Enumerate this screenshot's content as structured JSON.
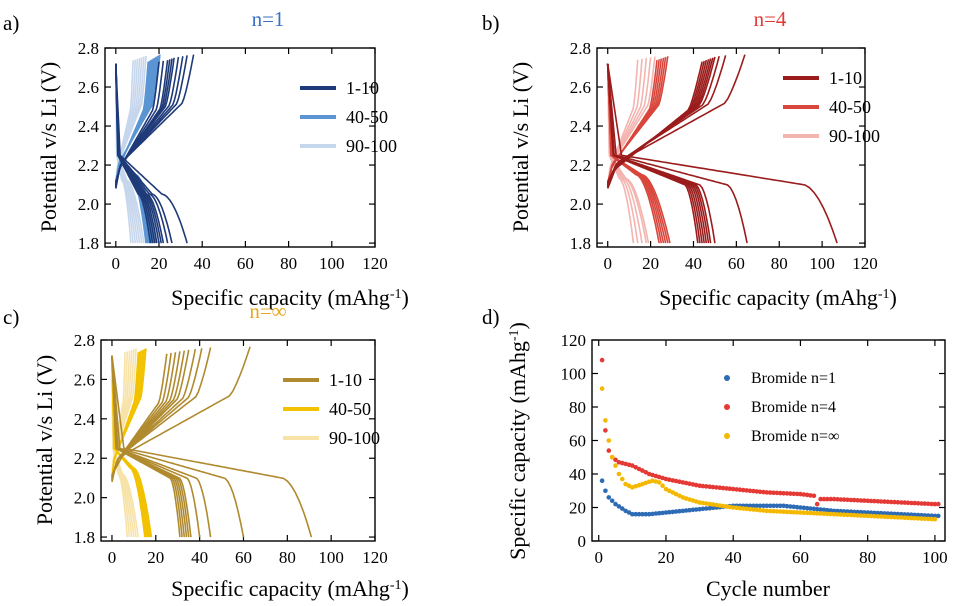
{
  "chart_data": [
    {
      "panel": "a)",
      "title": "n=1",
      "title_color": "#3a6fc2",
      "type": "line",
      "xlabel": "Specific capacity (mAhg",
      "xlabel_sup": "-1",
      "xlabel_end": ")",
      "ylabel": "Potential v/s Li (V)",
      "xlim": [
        -5,
        120
      ],
      "ylim": [
        1.78,
        2.8
      ],
      "xticks": [
        0,
        20,
        40,
        60,
        80,
        100,
        120
      ],
      "yticks": [
        1.8,
        2.0,
        2.2,
        2.4,
        2.6,
        2.8
      ],
      "ytick_labels": [
        "1.8",
        "2.0",
        "2.2",
        "2.4",
        "2.6",
        "2.8"
      ],
      "legend_position": "top-right",
      "legend": [
        {
          "label": "1-10",
          "color": "#1f3a78"
        },
        {
          "label": "40-50",
          "color": "#5b95d3"
        },
        {
          "label": "90-100",
          "color": "#c6d6ec"
        }
      ],
      "groups": [
        {
          "legend_index": 0,
          "charge_end": [
            20,
            22,
            24,
            25,
            26,
            27,
            29,
            31,
            33,
            36
          ],
          "discharge_end": [
            16,
            17,
            18,
            19,
            20,
            21,
            22,
            24,
            26,
            33
          ],
          "plateau": 2.05,
          "knee": 0.65
        },
        {
          "legend_index": 1,
          "charge_end": [
            15,
            15.6,
            16.2,
            16.8,
            17.4,
            18,
            18.6,
            19.2,
            19.8,
            20.4
          ],
          "discharge_end": [
            14,
            14.5,
            15,
            15.5,
            16,
            16.5,
            17,
            17.5,
            18,
            18.5
          ],
          "plateau": 2.15,
          "knee": 0.5
        },
        {
          "legend_index": 2,
          "charge_end": [
            8,
            9,
            10,
            11,
            12,
            13,
            14
          ],
          "discharge_end": [
            7,
            8,
            9,
            10,
            11,
            12,
            13
          ],
          "plateau": 2.12,
          "knee": 0.4
        }
      ]
    },
    {
      "panel": "b)",
      "title": "n=4",
      "title_color": "#e53935",
      "type": "line",
      "xlabel": "Specific capacity (mAhg",
      "xlabel_sup": "-1",
      "xlabel_end": ")",
      "ylabel": "Potential v/s Li (V)",
      "xlim": [
        -5,
        120
      ],
      "ylim": [
        1.78,
        2.8
      ],
      "xticks": [
        0,
        20,
        40,
        60,
        80,
        100,
        120
      ],
      "yticks": [
        1.8,
        2.0,
        2.2,
        2.4,
        2.6,
        2.8
      ],
      "ytick_labels": [
        "1.8",
        "2.0",
        "2.2",
        "2.4",
        "2.6",
        "2.8"
      ],
      "legend_position": "top-right",
      "legend": [
        {
          "label": "1-10",
          "color": "#9b1c1c"
        },
        {
          "label": "40-50",
          "color": "#d8463c"
        },
        {
          "label": "90-100",
          "color": "#f4b4b0"
        }
      ],
      "groups": [
        {
          "legend_index": 0,
          "charge_end": [
            44,
            45,
            46,
            47,
            48,
            49,
            50,
            52,
            55,
            64
          ],
          "discharge_end": [
            42,
            43,
            44,
            45,
            46,
            47,
            48,
            50,
            65,
            107
          ],
          "plateau": 2.1,
          "knee": 0.85
        },
        {
          "legend_index": 1,
          "charge_end": [
            23,
            24,
            25,
            26,
            27,
            28
          ],
          "discharge_end": [
            24,
            25,
            26,
            27,
            28,
            29
          ],
          "plateau": 2.15,
          "knee": 0.55
        },
        {
          "legend_index": 2,
          "charge_end": [
            14,
            16,
            18,
            20,
            22
          ],
          "discharge_end": [
            12,
            14,
            16,
            18,
            19
          ],
          "plateau": 2.13,
          "knee": 0.45
        }
      ]
    },
    {
      "panel": "c)",
      "title": "n=∞",
      "title_color": "#e8a921",
      "type": "line",
      "xlabel": "Specific capacity (mAhg",
      "xlabel_sup": "-1",
      "xlabel_end": ")",
      "ylabel": "Potential v/s Li (V)",
      "xlim": [
        -5,
        120
      ],
      "ylim": [
        1.78,
        2.8
      ],
      "xticks": [
        0,
        20,
        40,
        60,
        80,
        100,
        120
      ],
      "yticks": [
        1.8,
        2.0,
        2.2,
        2.4,
        2.6,
        2.8
      ],
      "ytick_labels": [
        "1.8",
        "2.0",
        "2.2",
        "2.4",
        "2.6",
        "2.8"
      ],
      "legend_position": "top-right",
      "legend": [
        {
          "label": "1-10",
          "color": "#b08a2e"
        },
        {
          "label": "40-50",
          "color": "#f2c200"
        },
        {
          "label": "90-100",
          "color": "#f7e3a8"
        }
      ],
      "groups": [
        {
          "legend_index": 0,
          "charge_end": [
            25,
            27,
            29,
            31,
            33,
            35,
            38,
            41,
            45,
            63
          ],
          "discharge_end": [
            31,
            32,
            33,
            34,
            35,
            36,
            40,
            45,
            60,
            91
          ],
          "plateau": 2.1,
          "knee": 0.85
        },
        {
          "legend_index": 1,
          "charge_end": [
            12,
            12.7,
            13.4,
            14.1,
            14.8,
            15.5
          ],
          "discharge_end": [
            15,
            15.6,
            16.2,
            16.8,
            17.4,
            18
          ],
          "plateau": 2.15,
          "knee": 0.55
        },
        {
          "legend_index": 2,
          "charge_end": [
            6,
            7,
            8,
            9,
            10,
            11
          ],
          "discharge_end": [
            7,
            8,
            9,
            10,
            11,
            12
          ],
          "plateau": 2.12,
          "knee": 0.4
        }
      ]
    },
    {
      "panel": "d)",
      "type": "scatter",
      "xlabel": "Cycle number",
      "ylabel": "Specific capacity (mAhg",
      "ylabel_sup": "-1",
      "ylabel_end": ")",
      "xlim": [
        -2,
        103
      ],
      "ylim": [
        0,
        120
      ],
      "xticks": [
        0,
        20,
        40,
        60,
        80,
        100
      ],
      "yticks": [
        0,
        20,
        40,
        60,
        80,
        100,
        120
      ],
      "legend_position": "top-right",
      "series": [
        {
          "name": "Bromide n=1",
          "color": "#2d6bb5",
          "x": [
            1,
            2,
            3,
            5,
            8,
            10,
            15,
            20,
            30,
            40,
            50,
            55,
            60,
            65,
            70,
            80,
            90,
            100,
            101
          ],
          "y": [
            36,
            30,
            26,
            22,
            18,
            16,
            16,
            17,
            19,
            21,
            21,
            21,
            20,
            19,
            18,
            17,
            16,
            15,
            15
          ]
        },
        {
          "name": "Bromide n=4",
          "color": "#e53935",
          "x": [
            1,
            2,
            3,
            4,
            6,
            8,
            10,
            15,
            20,
            30,
            40,
            50,
            60,
            64,
            65,
            66,
            70,
            80,
            90,
            100,
            101
          ],
          "y": [
            108,
            66,
            54,
            50,
            47,
            46,
            45,
            40,
            37,
            33,
            31,
            29,
            28,
            27,
            22,
            25,
            25,
            24,
            23,
            22,
            22
          ]
        },
        {
          "name": "Bromide n=∞",
          "color": "#f5b800",
          "x": [
            1,
            2,
            3,
            4,
            6,
            8,
            10,
            13,
            16,
            18,
            20,
            25,
            30,
            40,
            50,
            60,
            70,
            80,
            90,
            100
          ],
          "y": [
            91,
            72,
            60,
            50,
            40,
            34,
            32,
            34,
            36,
            35,
            31,
            26,
            23,
            20,
            18,
            17,
            16,
            15,
            14,
            13
          ]
        }
      ]
    }
  ]
}
